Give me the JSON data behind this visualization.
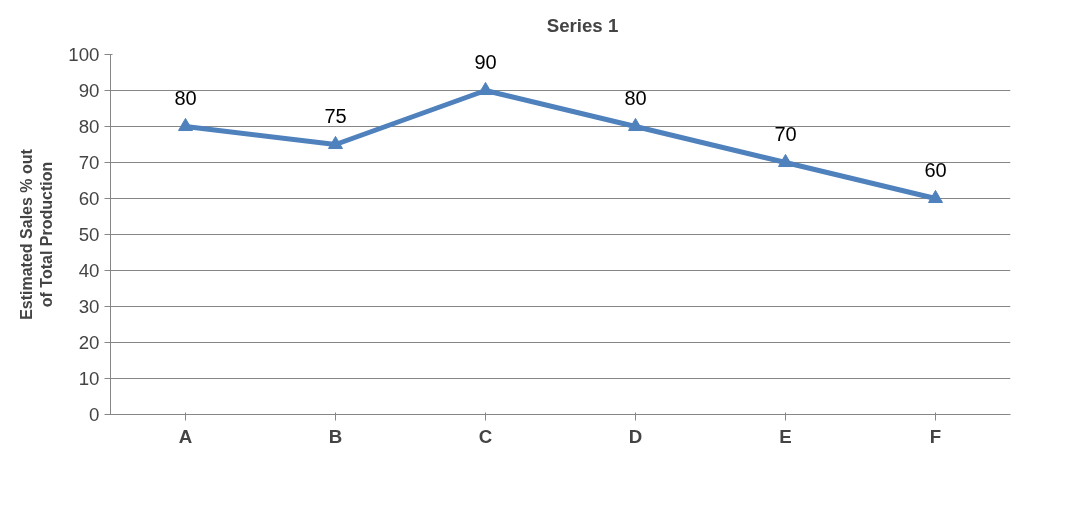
{
  "chart_data": {
    "type": "line",
    "ylabel": "Estimated Sales % out of Total Production",
    "categories": [
      "A",
      "B",
      "C",
      "D",
      "E",
      "F"
    ],
    "series": [
      {
        "name": "Series 1",
        "color": "#4f81bd",
        "values": [
          80,
          75,
          90,
          80,
          70,
          60
        ]
      }
    ],
    "ylim": [
      0,
      100
    ],
    "yticks": [
      0,
      10,
      20,
      30,
      40,
      50,
      60,
      70,
      80,
      90,
      100
    ],
    "grid": "y",
    "legend": "top",
    "marker": "triangle",
    "line_style": "solid",
    "data_labels": true
  }
}
